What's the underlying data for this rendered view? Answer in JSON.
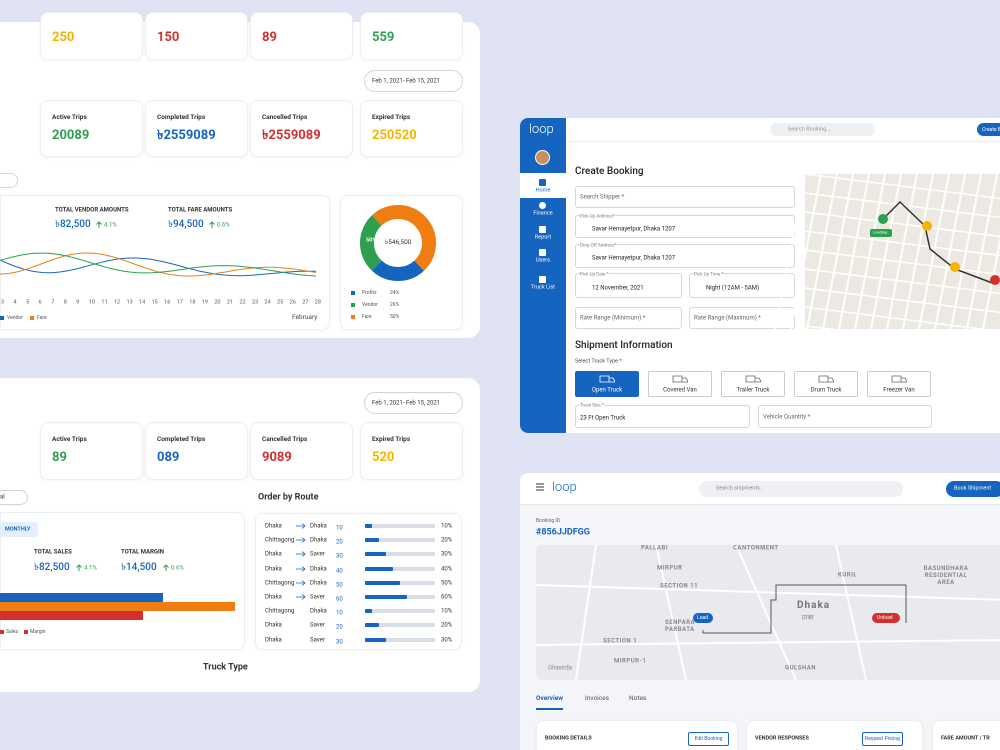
{
  "overview": {
    "summary_values": [
      "250",
      "150",
      "89",
      "559"
    ],
    "date_range": "Feb 1, 2021- Feb 15, 2021",
    "stats": [
      {
        "label": "Active Trips",
        "value": "20089"
      },
      {
        "label": "Completed Trips",
        "value": "৳2559089"
      },
      {
        "label": "Cancelled Trips",
        "value": "৳2559089"
      },
      {
        "label": "Expired Trips",
        "value": "250520"
      }
    ],
    "amounts": [
      {
        "label": "TOTAL VENDOR AMOUNTS",
        "value": "৳82,500",
        "change": "4.1%"
      },
      {
        "label": "TOTAL FARE AMOUNTS",
        "value": "৳94,500",
        "change": "0.6%"
      }
    ],
    "days": [
      "3",
      "4",
      "5",
      "6",
      "7",
      "8",
      "9",
      "10",
      "11",
      "12",
      "13",
      "14",
      "15",
      "16",
      "17",
      "18",
      "19",
      "20",
      "21",
      "22",
      "23",
      "24",
      "25",
      "26",
      "27",
      "28"
    ],
    "month": "February",
    "legend": [
      "Vendor",
      "Fare"
    ],
    "donut": {
      "total": "৳546,500",
      "slice_label": "50%",
      "series": [
        {
          "name": "Profits",
          "color": "#1565c0",
          "value": 24,
          "value_label": "24%"
        },
        {
          "name": "Vendor",
          "color": "#2e9e4f",
          "value": 26,
          "value_label": "26%"
        },
        {
          "name": "Fare",
          "color": "#ef7d12",
          "value": 50,
          "value_label": "50%"
        }
      ]
    }
  },
  "sales": {
    "date_range": "Feb 1, 2021- Feb 15, 2021",
    "stats": [
      {
        "label": "Active Trips",
        "value": "89"
      },
      {
        "label": "Completed Trips",
        "value": "089"
      },
      {
        "label": "Cancelled Trips",
        "value": "9089"
      },
      {
        "label": "Expired Trips",
        "value": "520"
      }
    ],
    "filter": "al",
    "toggle": "MONTHLY",
    "totals": [
      {
        "label": "TOTAL SALES",
        "value": "৳82,500",
        "change": "4.1%"
      },
      {
        "label": "TOTAL MARGIN",
        "value": "৳14,500",
        "change": "0.6%"
      }
    ],
    "legend": [
      "Sales",
      "Margin"
    ],
    "route_title": "Order by Route",
    "routes": [
      {
        "from": "Dhaka",
        "to": "Dhaka",
        "arrow": true,
        "count": "10",
        "share": 10,
        "share_label": "10%"
      },
      {
        "from": "Chittagong",
        "to": "Dhaka",
        "arrow": true,
        "count": "20",
        "share": 20,
        "share_label": "20%"
      },
      {
        "from": "Dhaka",
        "to": "Saver",
        "arrow": true,
        "count": "30",
        "share": 30,
        "share_label": "30%"
      },
      {
        "from": "Dhaka",
        "to": "Dhaka",
        "arrow": true,
        "count": "40",
        "share": 40,
        "share_label": "40%"
      },
      {
        "from": "Chittagong",
        "to": "Dhaka",
        "arrow": true,
        "count": "50",
        "share": 50,
        "share_label": "50%"
      },
      {
        "from": "Dhaka",
        "to": "Saver",
        "arrow": true,
        "count": "60",
        "share": 60,
        "share_label": "60%"
      },
      {
        "from": "Chittagong",
        "to": "Dhaka",
        "arrow": false,
        "count": "10",
        "share": 10,
        "share_label": "10%"
      },
      {
        "from": "Dhaka",
        "to": "Saver",
        "arrow": false,
        "count": "20",
        "share": 20,
        "share_label": "20%"
      },
      {
        "from": "Dhaka",
        "to": "Saver",
        "arrow": false,
        "count": "30",
        "share": 30,
        "share_label": "30%"
      }
    ],
    "truck_type_title": "Truck Type"
  },
  "booking": {
    "logo": "loop",
    "search": "Search Booking...",
    "button": "Create B",
    "nav": [
      "Home",
      "Finance",
      "Report",
      "Users",
      "Truck List"
    ],
    "title": "Create Booking",
    "search_shipper": "Search Shipper *",
    "pickup": {
      "label": "Pick Up Address*",
      "value": "Savar Hemayetpur, Dhaka 1207"
    },
    "dropoff": {
      "label": "Drop Off Address*",
      "value": "Savar Hemayetpur, Dhaka 1207"
    },
    "date": {
      "label": "Pick Up Date *",
      "value": "12 November, 2021"
    },
    "time": {
      "label": "Pick Up Time *",
      "value": "Night (12AM - 5AM)"
    },
    "rate_min": "Rate Range (Minimum) *",
    "rate_max": "Rate Range (Maximum) *",
    "map_label": "Loading",
    "shipment_title": "Shipment Information",
    "truck_type_label": "Select Truck Type *",
    "trucks": [
      "Open Truck",
      "Covered Van",
      "Trailer Truck",
      "Drum Truck",
      "Freezer Van"
    ],
    "truck_size": {
      "label": "Truck Size *",
      "value": "23 Ft Open Truck"
    },
    "vehicle_quantity": "Vehicle Quantity *"
  },
  "shipment": {
    "logo": "loop",
    "search": "Search shipments..",
    "button": "Book Shipment",
    "booking_id_label": "Booking ID",
    "booking_id": "#856JJDFGG",
    "map_labels": [
      "PALLABI",
      "CANTONMENT",
      "MIRPUR",
      "SECTION 11",
      "KURIL",
      "BASUNDHARA RESIDENTIAL AREA",
      "Dhaka",
      "ঢাকা",
      "SENPARA PARBATA",
      "SECTION 1",
      "MIRPUR-1",
      "GULSHAN",
      "Ghasirda"
    ],
    "load": "Load",
    "unload": "Unload",
    "tabs": [
      "Overview",
      "Invoices",
      "Notes"
    ],
    "cards": [
      {
        "title": "BOOKING DETAILS",
        "action": "Edit Booking"
      },
      {
        "title": "VENDOR RESPONSES",
        "action": "Request Pricing"
      },
      {
        "title": "FARE AMOUNT / TR"
      }
    ]
  }
}
